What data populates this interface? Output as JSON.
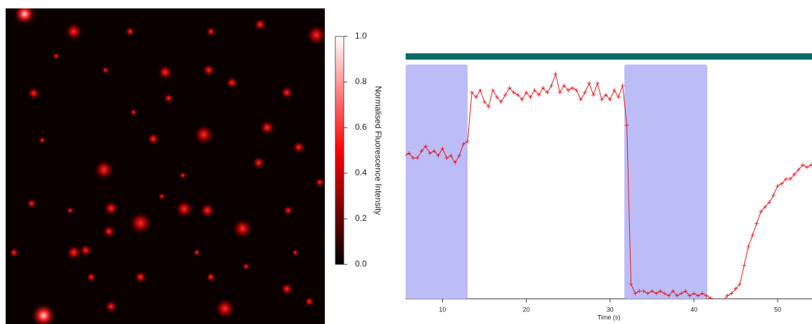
{
  "chart_data": [
    {
      "type": "colorbar",
      "label": "Normalised Fluorescence Intensity",
      "colormap": [
        "#000000",
        "#ff0000",
        "#ffffff"
      ],
      "ylim": [
        0,
        1
      ],
      "yticks": [
        {
          "value": 0,
          "label": "0.0"
        },
        {
          "value": 0.2,
          "label": "0.2"
        },
        {
          "value": 0.4,
          "label": "0.4"
        },
        {
          "value": 0.6,
          "label": "0.6"
        },
        {
          "value": 0.8,
          "label": "0.8"
        },
        {
          "value": 1,
          "label": "1.0"
        }
      ]
    },
    {
      "type": "line",
      "xlabel": "Time (s)",
      "xlim": [
        5.6,
        54.1
      ],
      "xticks": [
        10,
        20,
        30,
        40,
        50
      ],
      "ylim": [
        0,
        1
      ],
      "shaded_regions": [
        {
          "x": [
            5.6,
            13.0
          ],
          "color": "#bcbcf7"
        },
        {
          "x": [
            31.7,
            41.6
          ],
          "color": "#bcbcf7"
        }
      ],
      "x": [
        5.5,
        6,
        6.5,
        7,
        7.5,
        8,
        8.5,
        9,
        9.5,
        10,
        10.5,
        11,
        11.5,
        12,
        12.5,
        13,
        13.5,
        14,
        14.5,
        15,
        15.5,
        16,
        16.5,
        17,
        17.5,
        18,
        18.5,
        19,
        19.5,
        20,
        20.5,
        21,
        21.5,
        22,
        22.5,
        23,
        23.5,
        24,
        24.5,
        25,
        25.5,
        26,
        26.5,
        27,
        27.5,
        28,
        28.5,
        29,
        29.5,
        30,
        30.5,
        31,
        31.5,
        32,
        32.5,
        33,
        33.5,
        34,
        34.5,
        35,
        35.5,
        36,
        36.5,
        37,
        37.5,
        38,
        38.5,
        39,
        39.5,
        40,
        40.5,
        41,
        41.5,
        42,
        42.5,
        43,
        43.5,
        44,
        44.5,
        45,
        45.5,
        46,
        46.5,
        47,
        47.5,
        48,
        48.5,
        49,
        49.5,
        50,
        50.5,
        51,
        51.5,
        52,
        52.5,
        53,
        53.5,
        54
      ],
      "series": [
        {
          "color": "#e8191e",
          "values": [
            0.61,
            0.62,
            0.6,
            0.6,
            0.63,
            0.65,
            0.62,
            0.63,
            0.61,
            0.64,
            0.6,
            0.61,
            0.58,
            0.61,
            0.66,
            0.67,
            0.88,
            0.86,
            0.89,
            0.84,
            0.82,
            0.89,
            0.86,
            0.84,
            0.87,
            0.9,
            0.88,
            0.87,
            0.85,
            0.88,
            0.86,
            0.89,
            0.87,
            0.9,
            0.88,
            0.91,
            0.96,
            0.88,
            0.91,
            0.89,
            0.9,
            0.89,
            0.85,
            0.88,
            0.92,
            0.87,
            0.92,
            0.85,
            0.87,
            0.85,
            0.89,
            0.86,
            0.91,
            0.74,
            0.06,
            0.02,
            0.03,
            0.03,
            0.02,
            0.03,
            0.02,
            0.03,
            0.02,
            0.01,
            0.03,
            0.01,
            0.02,
            0.03,
            0.01,
            0.02,
            0.01,
            0.02,
            0.01,
            0.0,
            -0.02,
            -0.01,
            -0.01,
            0.01,
            0.02,
            0.04,
            0.06,
            0.14,
            0.22,
            0.27,
            0.32,
            0.37,
            0.39,
            0.41,
            0.44,
            0.48,
            0.49,
            0.51,
            0.51,
            0.53,
            0.55,
            0.57,
            0.56,
            0.57
          ]
        }
      ]
    }
  ]
}
